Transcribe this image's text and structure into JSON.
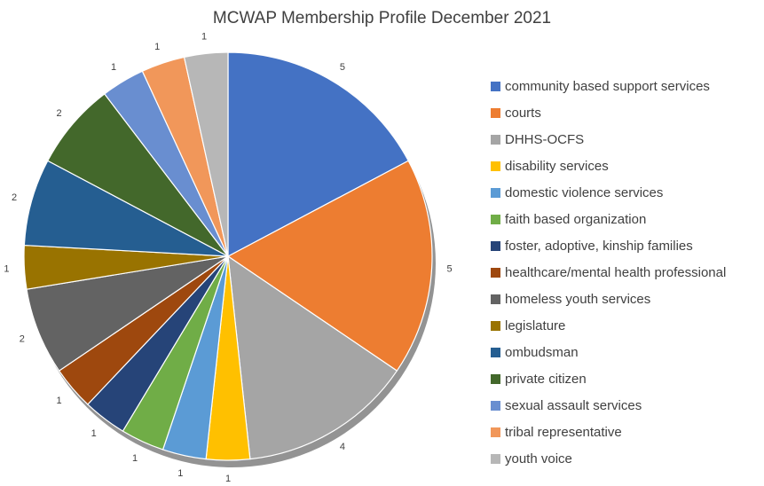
{
  "chart_data": {
    "type": "pie",
    "title": "MCWAP Membership Profile December 2021",
    "categories": [
      "community based support services",
      "courts",
      "DHHS-OCFS",
      "disability services",
      "domestic violence services",
      "faith based organization",
      "foster, adoptive, kinship families",
      "healthcare/mental health professional",
      "homeless youth services",
      "legislature",
      "ombudsman",
      "private citizen",
      "sexual assault services",
      "tribal representative",
      "youth voice"
    ],
    "values": [
      5,
      5,
      4,
      1,
      1,
      1,
      1,
      1,
      2,
      1,
      2,
      2,
      1,
      1,
      1
    ],
    "colors": [
      "#4472C4",
      "#ED7D31",
      "#A5A5A5",
      "#FFC000",
      "#5B9BD5",
      "#70AD47",
      "#264478",
      "#9E480E",
      "#636363",
      "#997300",
      "#255E91",
      "#43682B",
      "#698ED0",
      "#F1975A",
      "#B7B7B7"
    ],
    "data_labels": true,
    "legend": "right"
  }
}
